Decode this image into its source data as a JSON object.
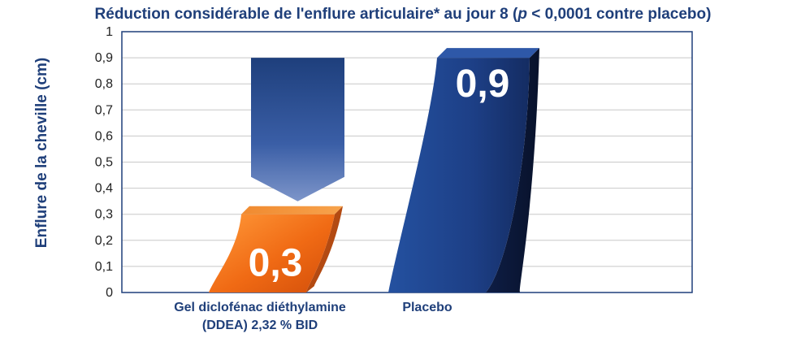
{
  "chart_data": {
    "type": "bar",
    "title_parts": [
      {
        "text": "Réduction considérable de l'enflure articulaire* au jour 8 (",
        "italic": false
      },
      {
        "text": "p",
        "italic": true
      },
      {
        "text": " < 0,0001 contre placebo)",
        "italic": false
      }
    ],
    "ylabel": "Enflure de la cheville (cm)",
    "xlabel": "",
    "ylim": [
      0,
      1
    ],
    "y_ticks": [
      "0",
      "0,1",
      "0,2",
      "0,3",
      "0,4",
      "0,5",
      "0,6",
      "0,7",
      "0,8",
      "0,9",
      "1"
    ],
    "grid": true,
    "categories": [
      [
        "Gel diclofénac diéthylamine",
        "(DDEA) 2,32 % BID"
      ],
      [
        "Placebo"
      ]
    ],
    "values": [
      0.3,
      0.9
    ],
    "value_labels": [
      "0,3",
      "0,9"
    ],
    "colors": {
      "bar_1": "#f07a1f",
      "bar_2": "#1d3f85",
      "arrow": "#2a4f95",
      "text": "#1f3f7a",
      "grid": "#c8c8c8"
    },
    "annotation": "down-arrow-from-placebo-level-to-ddea-level"
  }
}
